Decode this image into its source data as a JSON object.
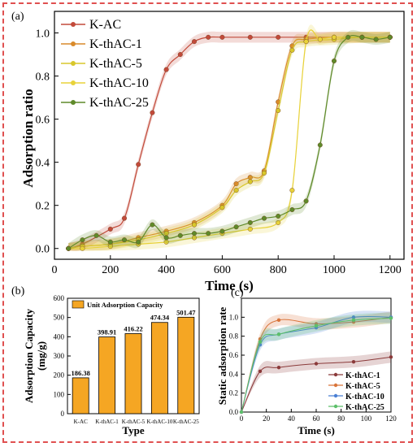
{
  "colors": {
    "frame": "#e05050",
    "K-AC": "#c24a3a",
    "K-thAC-1": "#d98a2b",
    "K-thAC-5": "#d8c72b",
    "K-thAC-10": "#e8d23a",
    "K-thAC-25": "#5f8a2a",
    "bar": "#f5a623",
    "panelc_K-thAC-1": "#8b3a3a",
    "panelc_K-thAC-5": "#d9743a",
    "panelc_K-thAC-10": "#4a7fd4",
    "panelc_K-thAC-25": "#5cbf6a"
  },
  "chart_data": [
    {
      "panel": "(a)",
      "type": "line",
      "xlabel": "Time (s)",
      "ylabel": "Adsorption ratio",
      "xlim": [
        0,
        1250
      ],
      "ylim": [
        -0.05,
        1.1
      ],
      "xticks": [
        "0",
        "200",
        "400",
        "600",
        "800",
        "1000",
        "1200"
      ],
      "yticks": [
        "0.0",
        "0.2",
        "0.4",
        "0.6",
        "0.8",
        "1.0"
      ],
      "legend_position": "top-left",
      "series": [
        {
          "name": "K-AC",
          "x": [
            50,
            100,
            200,
            250,
            300,
            350,
            400,
            450,
            500,
            550,
            600,
            700,
            800,
            900,
            1000,
            1100,
            1200
          ],
          "y": [
            0,
            0.02,
            0.09,
            0.14,
            0.39,
            0.63,
            0.83,
            0.9,
            0.96,
            0.98,
            0.98,
            0.98,
            0.98,
            0.98,
            0.98,
            0.98,
            0.98
          ]
        },
        {
          "name": "K-thAC-1",
          "x": [
            50,
            100,
            200,
            300,
            400,
            500,
            600,
            650,
            700,
            750,
            800,
            850,
            900,
            1000,
            1100,
            1200
          ],
          "y": [
            0,
            0.01,
            0.02,
            0.05,
            0.08,
            0.12,
            0.2,
            0.3,
            0.33,
            0.36,
            0.68,
            0.94,
            0.97,
            0.98,
            0.98,
            0.98
          ]
        },
        {
          "name": "K-thAC-5",
          "x": [
            50,
            100,
            200,
            300,
            400,
            500,
            600,
            650,
            700,
            750,
            800,
            850,
            900,
            1000,
            1100,
            1200
          ],
          "y": [
            0,
            0.01,
            0.02,
            0.04,
            0.07,
            0.11,
            0.19,
            0.27,
            0.31,
            0.35,
            0.64,
            0.92,
            0.96,
            0.97,
            0.98,
            0.98
          ]
        },
        {
          "name": "K-thAC-10",
          "x": [
            50,
            100,
            200,
            300,
            400,
            500,
            600,
            700,
            800,
            850,
            900,
            950,
            1000,
            1100,
            1200
          ],
          "y": [
            0,
            0.0,
            0.01,
            0.02,
            0.03,
            0.05,
            0.07,
            0.09,
            0.12,
            0.27,
            0.96,
            0.97,
            0.98,
            0.98,
            0.98
          ]
        },
        {
          "name": "K-thAC-25",
          "x": [
            50,
            100,
            150,
            200,
            250,
            300,
            350,
            400,
            450,
            500,
            550,
            600,
            650,
            700,
            750,
            800,
            850,
            900,
            950,
            1000,
            1050,
            1100,
            1150,
            1200
          ],
          "y": [
            0,
            0.04,
            0.06,
            0.03,
            0.04,
            0.03,
            0.11,
            0.05,
            0.06,
            0.07,
            0.07,
            0.08,
            0.1,
            0.12,
            0.14,
            0.15,
            0.18,
            0.22,
            0.48,
            0.87,
            0.98,
            0.98,
            0.97,
            0.98
          ]
        }
      ]
    },
    {
      "panel": "(b)",
      "type": "bar",
      "xlabel": "Type",
      "ylabel": "Adsorption Capacity (mg/g)",
      "ylim": [
        0,
        600
      ],
      "yticks": [
        "0",
        "100",
        "200",
        "300",
        "400",
        "500",
        "600"
      ],
      "legend_position": "top-left",
      "series": [
        {
          "name": "Unit Adsorption Capacity",
          "values": [
            186.38,
            398.91,
            416.22,
            474.34,
            501.47
          ]
        }
      ],
      "categories": [
        "K-AC",
        "K-thAC-1",
        "K-thAC-5",
        "K-thAC-10",
        "K-thAC-25"
      ],
      "data_labels": [
        "186.38",
        "398.91",
        "416.22",
        "474.34",
        "501.47"
      ]
    },
    {
      "panel": "(c)",
      "type": "line",
      "xlabel": "Time (s)",
      "ylabel": "Static adsorption rate",
      "xlim": [
        0,
        120
      ],
      "ylim": [
        0,
        1.2
      ],
      "xticks": [
        "0",
        "20",
        "40",
        "60",
        "80",
        "100",
        "120"
      ],
      "yticks": [
        "0.0",
        "0.2",
        "0.4",
        "0.6",
        "0.8",
        "1.0"
      ],
      "legend_position": "bottom-right",
      "series": [
        {
          "name": "K-thAC-1",
          "x": [
            0,
            15,
            30,
            60,
            90,
            120
          ],
          "y": [
            0,
            0.43,
            0.47,
            0.51,
            0.53,
            0.58
          ]
        },
        {
          "name": "K-thAC-5",
          "x": [
            0,
            15,
            30,
            60,
            90,
            120
          ],
          "y": [
            0,
            0.77,
            0.97,
            0.93,
            0.95,
            1.0
          ]
        },
        {
          "name": "K-thAC-10",
          "x": [
            0,
            15,
            30,
            60,
            90,
            120
          ],
          "y": [
            0,
            0.71,
            0.82,
            0.89,
            1.0,
            1.0
          ]
        },
        {
          "name": "K-thAC-25",
          "x": [
            0,
            15,
            30,
            60,
            90,
            120
          ],
          "y": [
            0,
            0.74,
            0.82,
            0.91,
            0.97,
            0.99
          ]
        }
      ]
    }
  ]
}
